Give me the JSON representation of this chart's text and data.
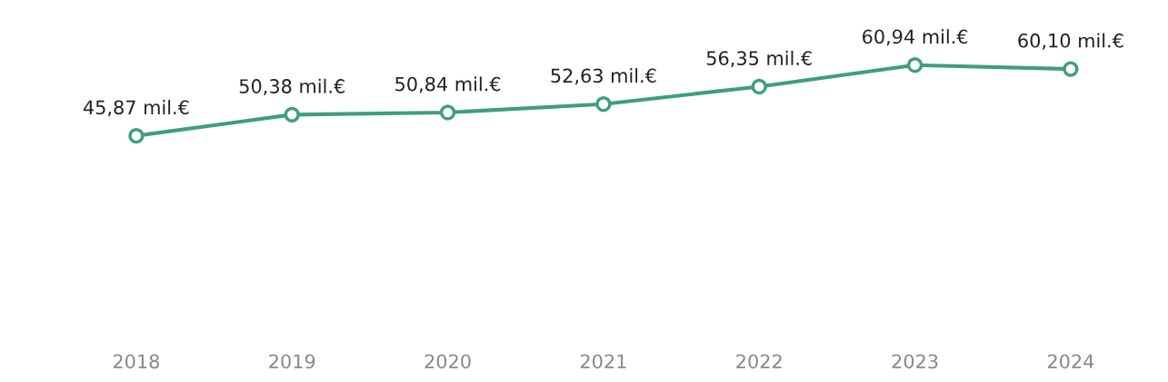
{
  "chart_data": {
    "type": "line",
    "categories": [
      "2018",
      "2019",
      "2020",
      "2021",
      "2022",
      "2023",
      "2024"
    ],
    "series": [
      {
        "color": "#3f9e7c",
        "values": [
          45.87,
          50.38,
          50.84,
          52.63,
          56.35,
          60.94,
          60.1
        ],
        "value_labels": [
          "45,87 mil.€",
          "50,38 mil.€",
          "50,84 mil.€",
          "52,63 mil.€",
          "56,35 mil.€",
          "60,94 mil.€",
          "60,10 mil.€"
        ]
      }
    ],
    "marker": "circle",
    "line_style": "solid",
    "grid": false,
    "legend": false
  }
}
